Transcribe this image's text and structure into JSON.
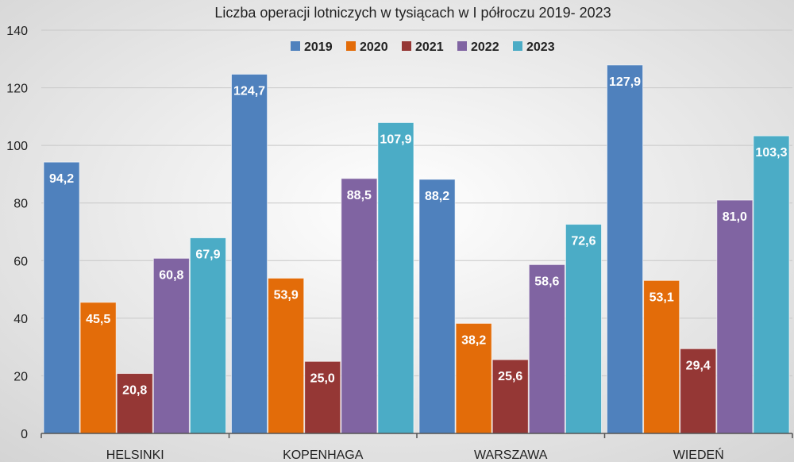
{
  "chart_data": {
    "type": "bar",
    "title": "Liczba operacji lotniczych w tysiącach w I półroczu 2019- 2023",
    "xlabel": "",
    "ylabel": "",
    "categories": [
      "HELSINKI",
      "KOPENHAGA",
      "WARSZAWA",
      "WIEDEŃ"
    ],
    "series": [
      {
        "name": "2019",
        "color": "#4f81bd",
        "values": [
          94.2,
          124.7,
          88.2,
          127.9
        ],
        "labels": [
          "94,2",
          "124,7",
          "88,2",
          "127,9"
        ]
      },
      {
        "name": "2020",
        "color": "#e36c09",
        "values": [
          45.5,
          53.9,
          38.2,
          53.1
        ],
        "labels": [
          "45,5",
          "53,9",
          "38,2",
          "53,1"
        ]
      },
      {
        "name": "2021",
        "color": "#953735",
        "values": [
          20.8,
          25.0,
          25.6,
          29.4
        ],
        "labels": [
          "20,8",
          "25,0",
          "25,6",
          "29,4"
        ]
      },
      {
        "name": "2022",
        "color": "#8064a2",
        "values": [
          60.8,
          88.5,
          58.6,
          81.0
        ],
        "labels": [
          "60,8",
          "88,5",
          "58,6",
          "81,0"
        ]
      },
      {
        "name": "2023",
        "color": "#4bacc6",
        "values": [
          67.9,
          107.9,
          72.6,
          103.3
        ],
        "labels": [
          "67,9",
          "107,9",
          "72,6",
          "103,3"
        ]
      }
    ],
    "ylim": [
      0,
      140
    ],
    "yticks": [
      0,
      20,
      40,
      60,
      80,
      100,
      120,
      140
    ],
    "grid": true,
    "legend_position": "top-center",
    "data_label_color": "#ffffff",
    "background": [
      "#ffffff",
      "#dadada"
    ]
  }
}
